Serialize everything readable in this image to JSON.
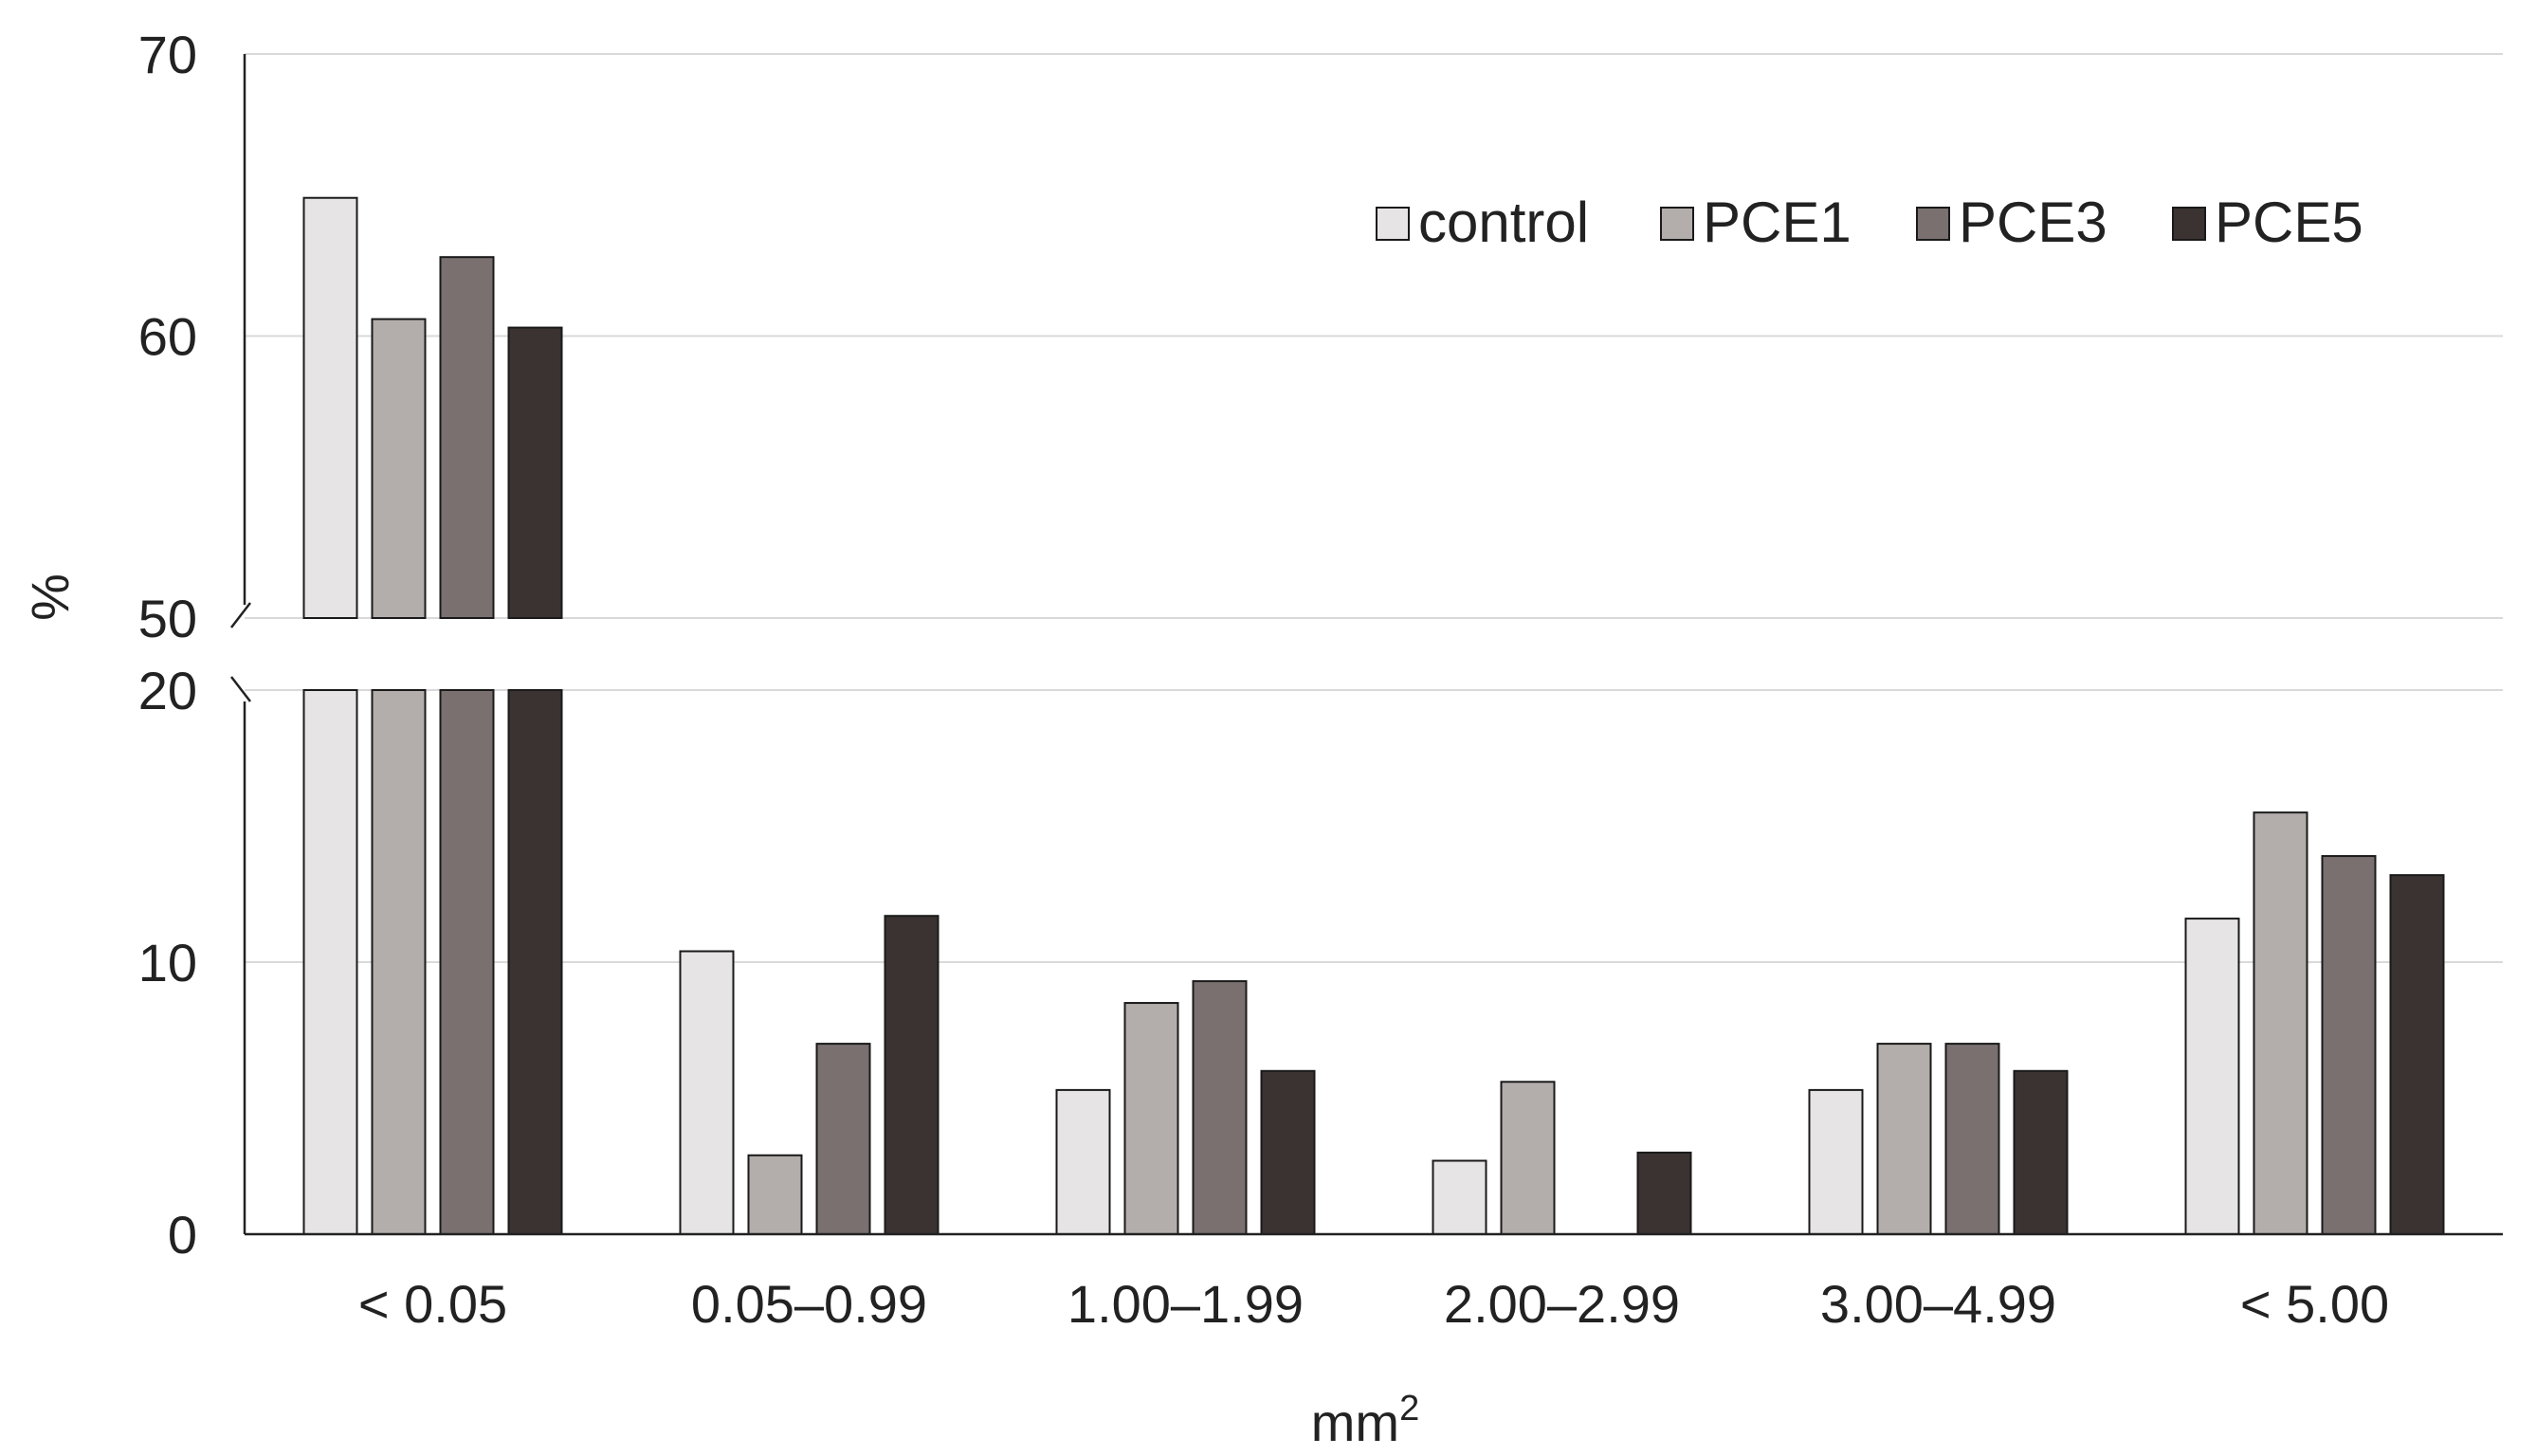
{
  "chart_data": {
    "type": "bar",
    "xlabel": "mm",
    "xlabel_superscript": "2",
    "ylabel": "%",
    "categories": [
      "< 0.05",
      "0.05–0.99",
      "1.00–1.99",
      "2.00–2.99",
      "3.00–4.99",
      "< 5.00"
    ],
    "series": [
      {
        "name": "control",
        "color": "#e6e4e5",
        "values": [
          64.9,
          10.4,
          5.3,
          2.7,
          5.3,
          11.6
        ]
      },
      {
        "name": "PCE1",
        "color": "#b3aeab",
        "values": [
          60.6,
          2.9,
          8.5,
          5.6,
          7.0,
          15.5
        ]
      },
      {
        "name": "PCE3",
        "color": "#7a7070",
        "values": [
          62.8,
          7.0,
          9.3,
          0,
          7.0,
          13.9
        ]
      },
      {
        "name": "PCE5",
        "color": "#3a3332",
        "values": [
          60.3,
          11.7,
          6.0,
          3.0,
          6.0,
          13.2
        ]
      }
    ],
    "y_axis_break": {
      "lower_range": [
        0,
        20
      ],
      "upper_range": [
        50,
        70
      ]
    },
    "yticks_lower": [
      0,
      10,
      20
    ],
    "yticks_upper": [
      50,
      60,
      70
    ],
    "grid": true,
    "legend_position": "top-right"
  }
}
